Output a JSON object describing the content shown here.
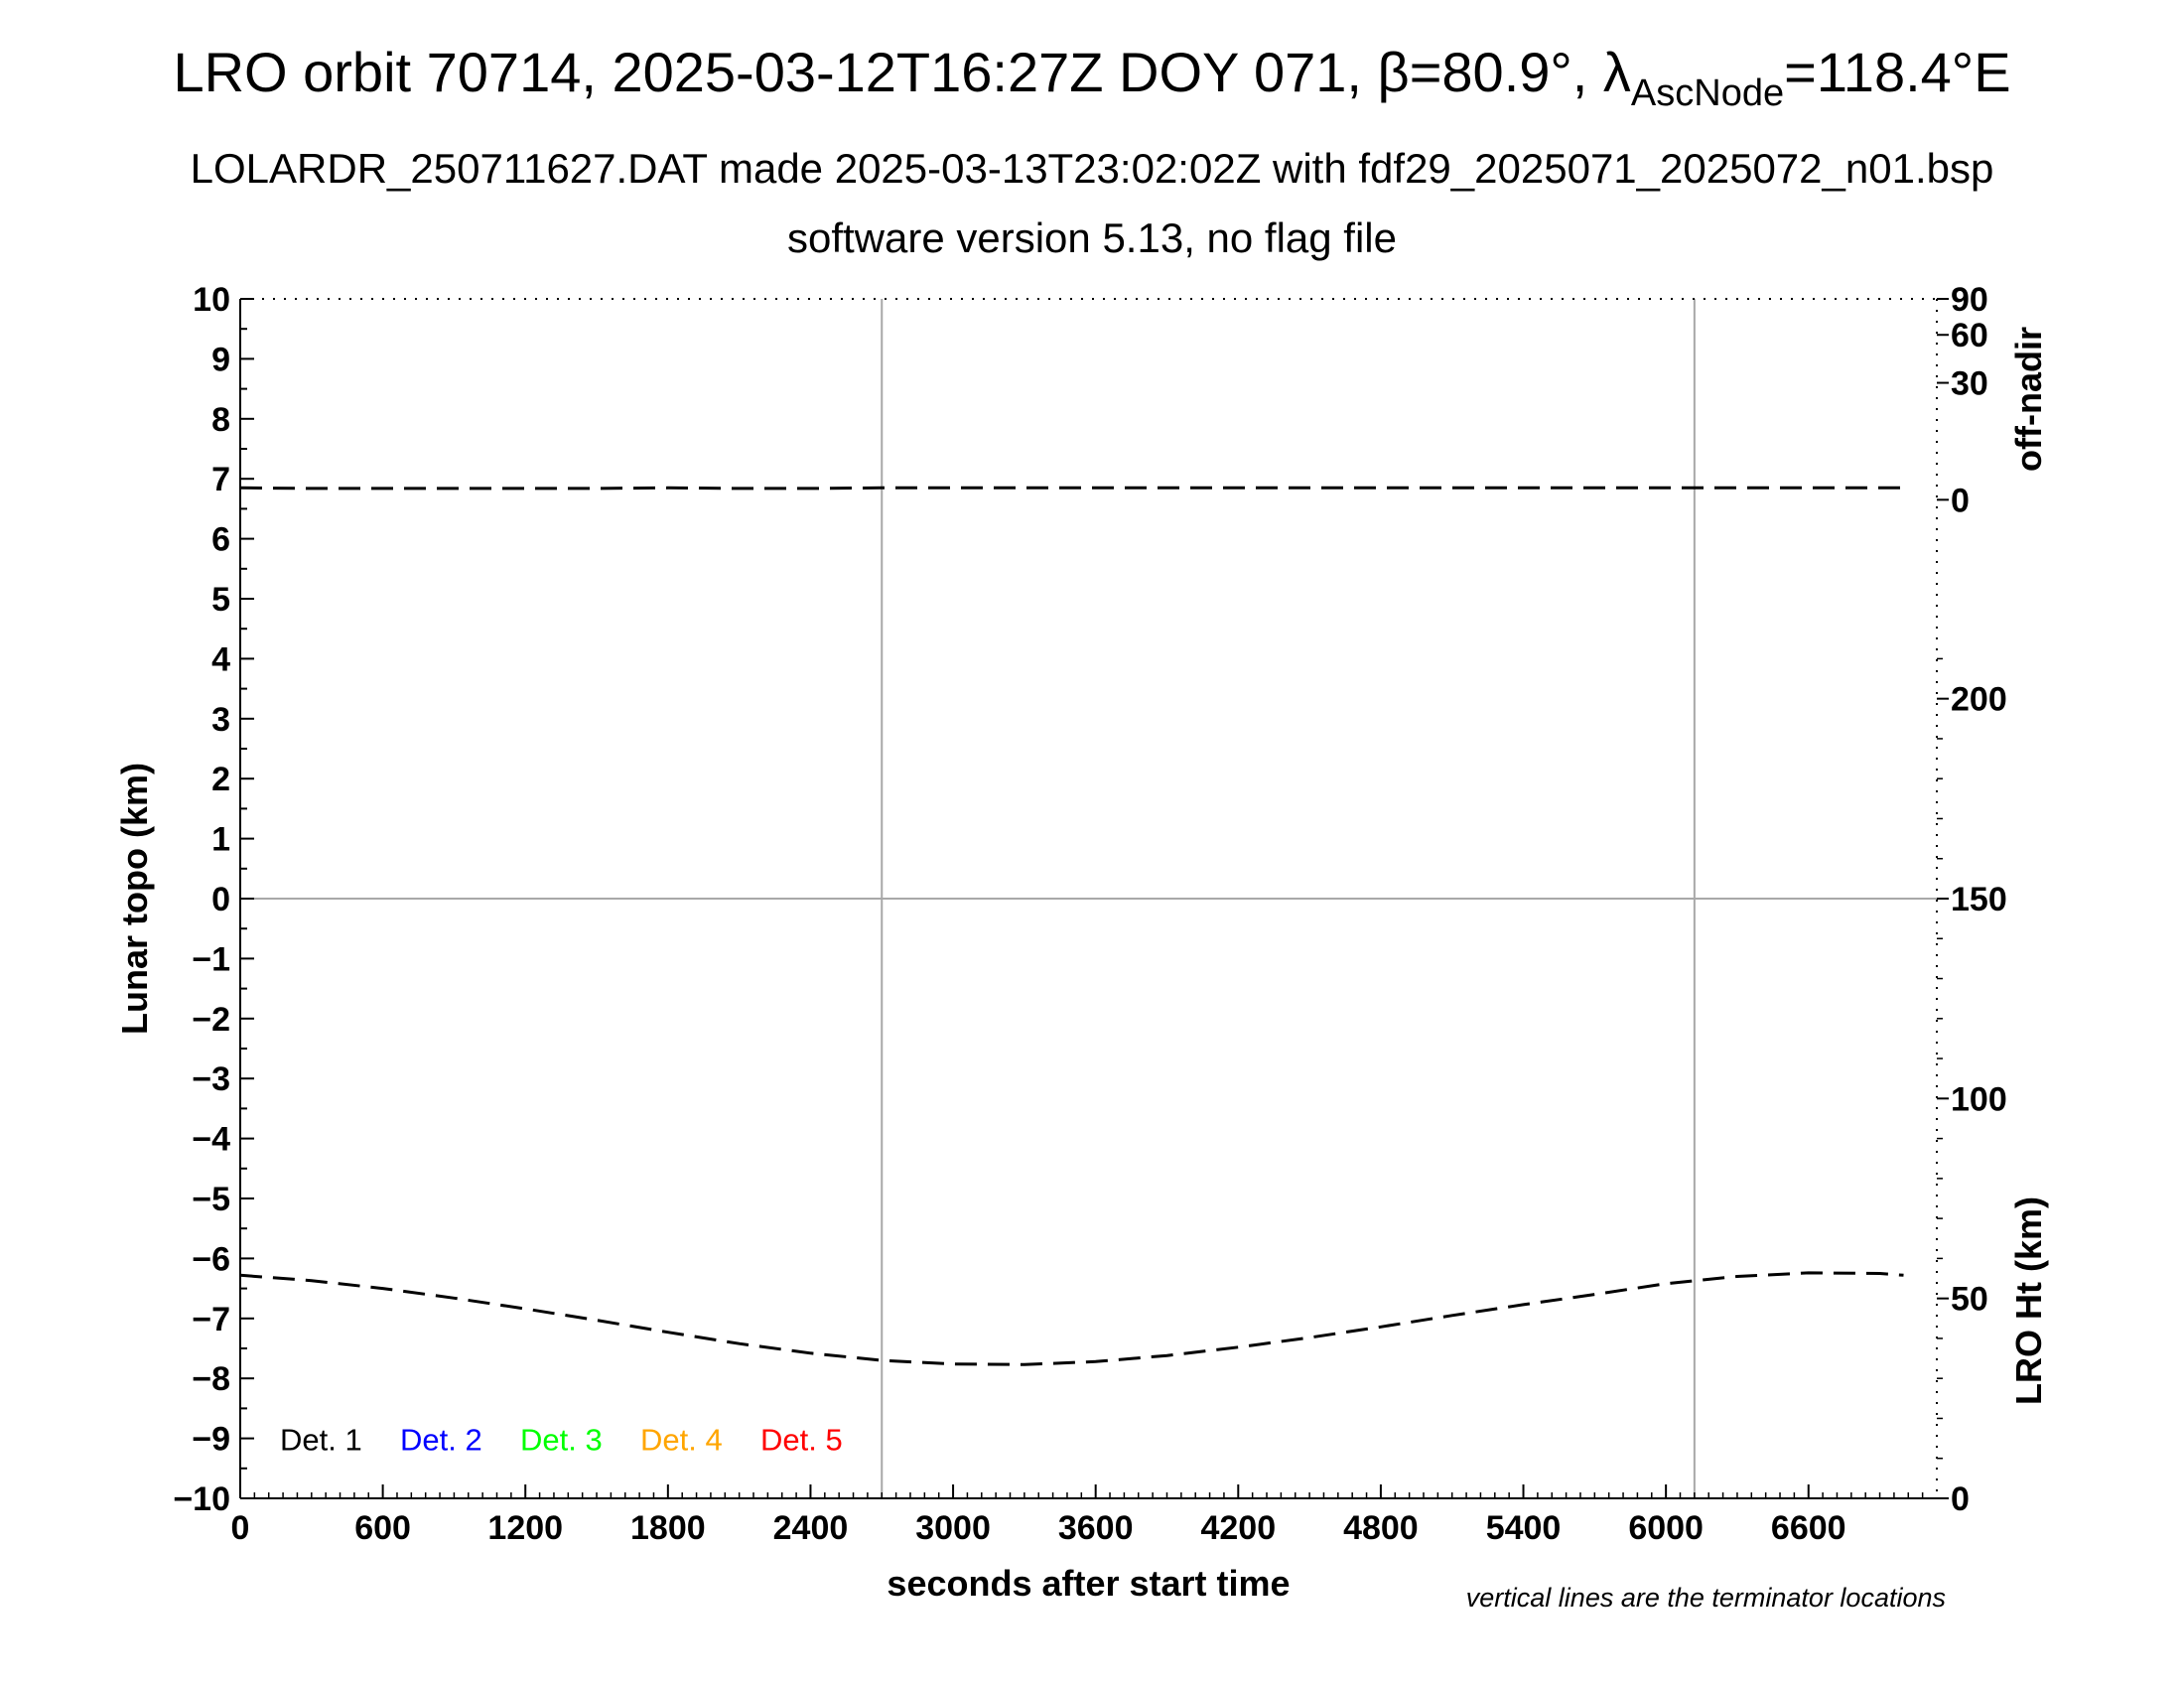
{
  "title": {
    "main_prefix": "LRO orbit 70714, 2025-03-12T16:27Z DOY 071, β=80.9°, λ",
    "main_sub": "AscNode",
    "main_suffix": "=118.4°E",
    "line2": "LOLARDR_250711627.DAT made 2025-03-13T23:02:02Z with fdf29_2025071_2025072_n01.bsp",
    "line3": "software version 5.13, no flag file"
  },
  "note": "vertical lines are the terminator locations",
  "chart_data": {
    "type": "line",
    "xlabel": "seconds after start time",
    "ylabel": "Lunar topo (km)",
    "y2label_top": "off-nadir",
    "y2label_bottom": "LRO Ht (km)",
    "xlim": [
      0,
      7140
    ],
    "ylim": [
      -10,
      10
    ],
    "x_ticks": [
      0,
      600,
      1200,
      1800,
      2400,
      3000,
      3600,
      4200,
      4800,
      5400,
      6000,
      6600
    ],
    "x_tick_labels": [
      "0",
      "600",
      "1200",
      "1800",
      "2400",
      "3000",
      "3600",
      "4200",
      "4800",
      "5400",
      "6000",
      "6600"
    ],
    "y_ticks": [
      10,
      9,
      8,
      7,
      6,
      5,
      4,
      3,
      2,
      1,
      0,
      -1,
      -2,
      -3,
      -4,
      -5,
      -6,
      -7,
      -8,
      -9,
      -10
    ],
    "y_tick_labels": [
      "10",
      "9",
      "8",
      "7",
      "6",
      "5",
      "4",
      "3",
      "2",
      "1",
      "0",
      "−1",
      "−2",
      "−3",
      "−4",
      "−5",
      "−6",
      "−7",
      "−8",
      "−9",
      "−10"
    ],
    "offnadir_ticks": [
      {
        "value": 90,
        "label": "90",
        "y_equiv": 10
      },
      {
        "value": 60,
        "label": "60",
        "y_equiv": 9.4
      },
      {
        "value": 30,
        "label": "30",
        "y_equiv": 8.6
      },
      {
        "value": 0,
        "label": "0",
        "y_equiv": 6.65
      }
    ],
    "lroht_ticks": [
      {
        "value": 200,
        "label": "200"
      },
      {
        "value": 150,
        "label": "150"
      },
      {
        "value": 100,
        "label": "100"
      },
      {
        "value": 50,
        "label": "50"
      },
      {
        "value": 0,
        "label": "0"
      }
    ],
    "lroht_range": [
      0,
      300
    ],
    "terminator_lines_x": [
      2700,
      6120
    ],
    "zero_line_y": 0,
    "grid": false,
    "legend_position": "bottom-left",
    "legend": [
      {
        "label": "Det. 1",
        "color": "#000000"
      },
      {
        "label": "Det. 2",
        "color": "#0000ff"
      },
      {
        "label": "Det. 3",
        "color": "#00ff00"
      },
      {
        "label": "Det. 4",
        "color": "#ffa500"
      },
      {
        "label": "Det. 5",
        "color": "#ff0000"
      }
    ],
    "series": [
      {
        "x": [
          0,
          300,
          600,
          900,
          1200,
          1500,
          1800,
          2100,
          2400,
          2700,
          3000,
          3300,
          3600,
          3900,
          4200,
          4500,
          4800,
          5100,
          5400,
          5700,
          6000,
          6300,
          6600,
          6900,
          7000
        ],
        "values": [
          6.85,
          6.84,
          6.84,
          6.84,
          6.84,
          6.84,
          6.85,
          6.84,
          6.84,
          6.85,
          6.85,
          6.85,
          6.85,
          6.85,
          6.85,
          6.85,
          6.85,
          6.85,
          6.85,
          6.85,
          6.85,
          6.85,
          6.85,
          6.85,
          6.85
        ],
        "style": "dashed",
        "color": "#000000"
      },
      {
        "x": [
          0,
          300,
          600,
          900,
          1200,
          1500,
          1800,
          2100,
          2400,
          2700,
          3000,
          3300,
          3600,
          3900,
          4200,
          4500,
          4800,
          5100,
          5400,
          5700,
          6000,
          6300,
          6600,
          6900,
          7000
        ],
        "values": [
          -6.28,
          -6.37,
          -6.5,
          -6.66,
          -6.84,
          -7.03,
          -7.23,
          -7.42,
          -7.58,
          -7.7,
          -7.76,
          -7.77,
          -7.72,
          -7.62,
          -7.48,
          -7.32,
          -7.14,
          -6.95,
          -6.77,
          -6.6,
          -6.42,
          -6.3,
          -6.24,
          -6.25,
          -6.28
        ],
        "style": "dashed",
        "color": "#000000"
      }
    ]
  }
}
